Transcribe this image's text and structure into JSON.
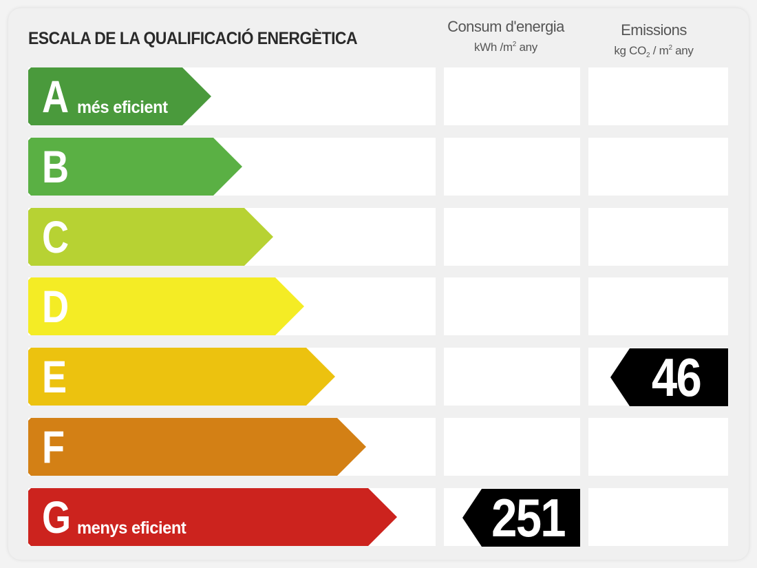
{
  "title": "ESCALA DE LA QUALIFICACIÓ ENERGÈTICA",
  "columns": {
    "consumption": {
      "name": "Consum d'energia",
      "unit_pre": "kWh /m",
      "unit_sup": "2",
      "unit_post": " any"
    },
    "emissions": {
      "name": "Emissions",
      "unit_pre": "kg CO",
      "unit_sub": "2",
      "unit_mid": " / m",
      "unit_sup": "2",
      "unit_post": " any"
    }
  },
  "chart_data": {
    "type": "table",
    "classes": [
      {
        "letter": "A",
        "label": "més eficient",
        "color": "#4a9a3c"
      },
      {
        "letter": "B",
        "label": "",
        "color": "#5ab044"
      },
      {
        "letter": "C",
        "label": "",
        "color": "#b7d233"
      },
      {
        "letter": "D",
        "label": "",
        "color": "#f4ec25"
      },
      {
        "letter": "E",
        "label": "",
        "color": "#ecc20f"
      },
      {
        "letter": "F",
        "label": "",
        "color": "#d38015"
      },
      {
        "letter": "G",
        "label": "menys eficient",
        "color": "#cc231e"
      }
    ],
    "consumption": {
      "class": "G",
      "value": "251"
    },
    "emissions": {
      "class": "E",
      "value": "46"
    }
  }
}
